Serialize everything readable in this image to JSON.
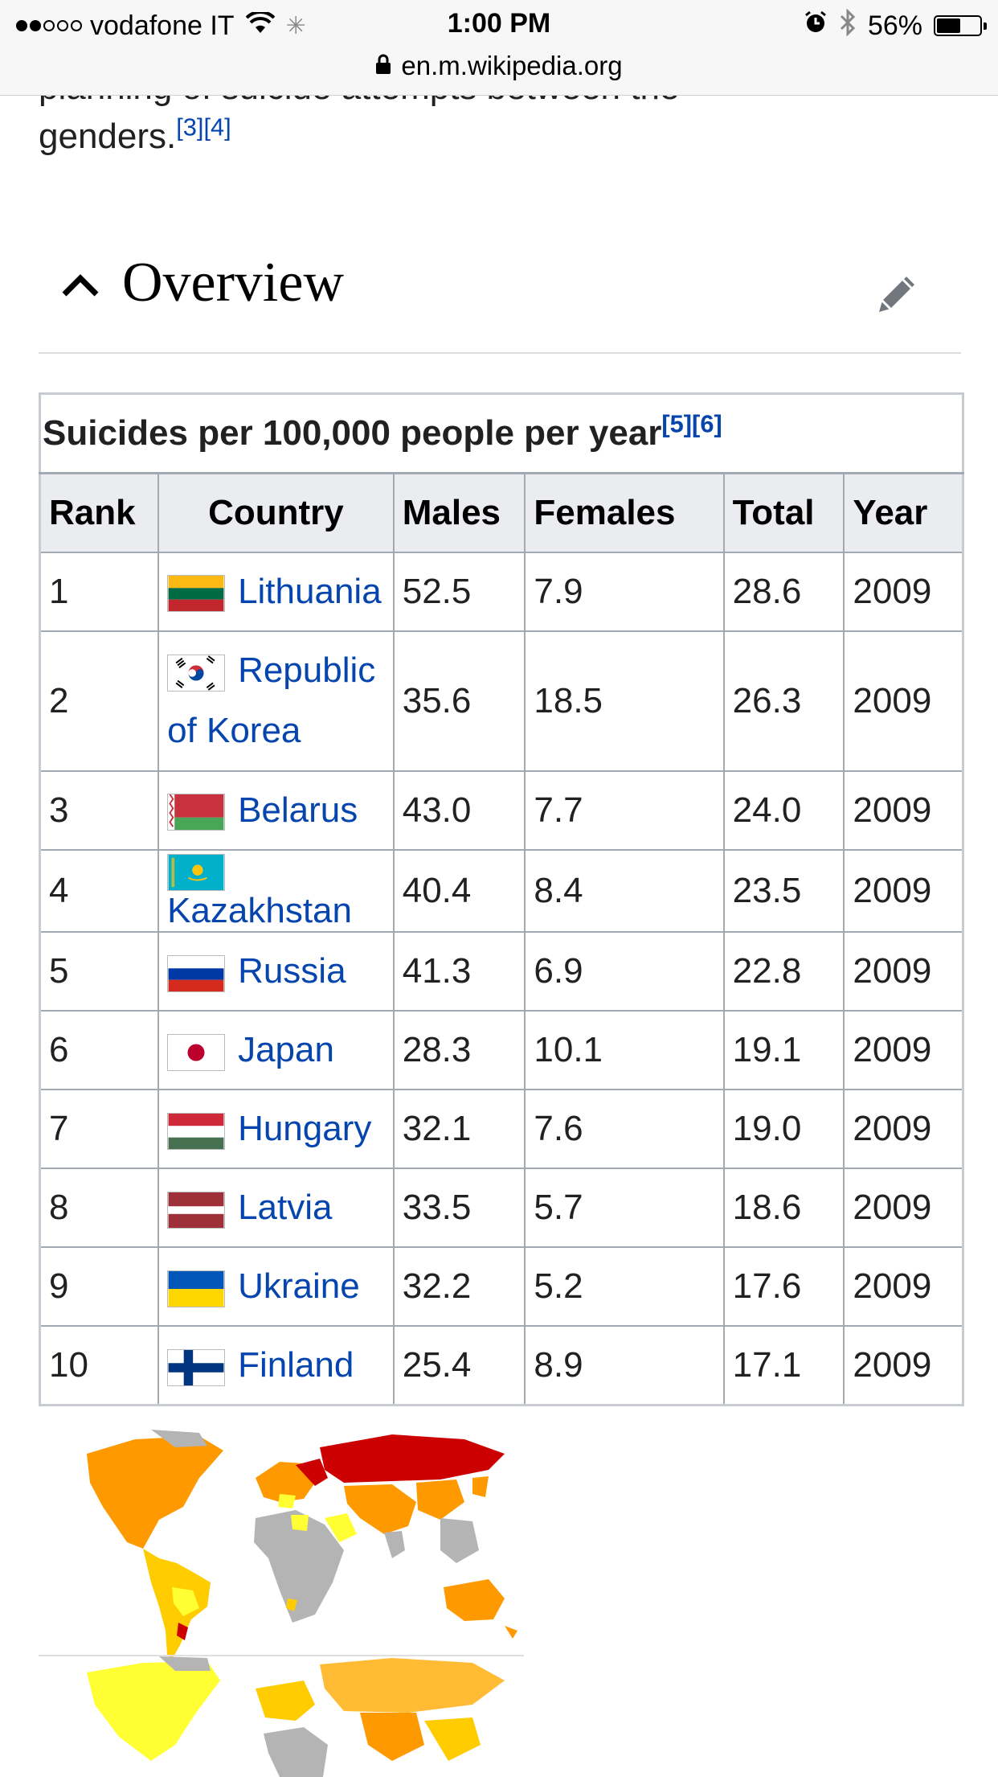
{
  "status_bar": {
    "carrier": "vodafone IT",
    "time": "1:00 PM",
    "battery": "56%",
    "battery_level": 0.56,
    "url": "en.m.wikipedia.org",
    "signal_bars": 2
  },
  "article": {
    "partial_line": "planning of suicide attempts between the",
    "genders_text": "genders.",
    "genders_refs": "[3][4]"
  },
  "section": {
    "title": "Overview",
    "collapse_icon": "chevron-up-icon",
    "edit_icon": "pencil-icon"
  },
  "table": {
    "caption": "Suicides per 100,000 people per year",
    "caption_refs": "[5][6]",
    "headers": [
      "Rank",
      "Country",
      "Males",
      "Females",
      "Total",
      "Year"
    ],
    "rows": [
      {
        "rank": "1",
        "country": "Lithuania",
        "males": "52.5",
        "females": "7.9",
        "total": "28.6",
        "year": "2009",
        "flag": "lithuania-flag-icon"
      },
      {
        "rank": "2",
        "country": "Republic of Korea",
        "males": "35.6",
        "females": "18.5",
        "total": "26.3",
        "year": "2009",
        "flag": "south-korea-flag-icon"
      },
      {
        "rank": "3",
        "country": "Belarus",
        "males": "43.0",
        "females": "7.7",
        "total": "24.0",
        "year": "2009",
        "flag": "belarus-flag-icon"
      },
      {
        "rank": "4",
        "country": "Kazakhstan",
        "males": "40.4",
        "females": "8.4",
        "total": "23.5",
        "year": "2009",
        "flag": "kazakhstan-flag-icon"
      },
      {
        "rank": "5",
        "country": "Russia",
        "males": "41.3",
        "females": "6.9",
        "total": "22.8",
        "year": "2009",
        "flag": "russia-flag-icon"
      },
      {
        "rank": "6",
        "country": "Japan",
        "males": "28.3",
        "females": "10.1",
        "total": "19.1",
        "year": "2009",
        "flag": "japan-flag-icon"
      },
      {
        "rank": "7",
        "country": "Hungary",
        "males": "32.1",
        "females": "7.6",
        "total": "19.0",
        "year": "2009",
        "flag": "hungary-flag-icon"
      },
      {
        "rank": "8",
        "country": "Latvia",
        "males": "33.5",
        "females": "5.7",
        "total": "18.6",
        "year": "2009",
        "flag": "latvia-flag-icon"
      },
      {
        "rank": "9",
        "country": "Ukraine",
        "males": "32.2",
        "females": "5.2",
        "total": "17.6",
        "year": "2009",
        "flag": "ukraine-flag-icon"
      },
      {
        "rank": "10",
        "country": "Finland",
        "males": "25.4",
        "females": "8.9",
        "total": "17.1",
        "year": "2009",
        "flag": "finland-flag-icon"
      }
    ]
  },
  "colors": {
    "link": "#0645ad",
    "map_high": "#cc0000",
    "map_mid": "#ff9900",
    "map_low": "#ffcc00",
    "map_lowest": "#ffff33",
    "map_no_data": "#b4b4b4"
  }
}
